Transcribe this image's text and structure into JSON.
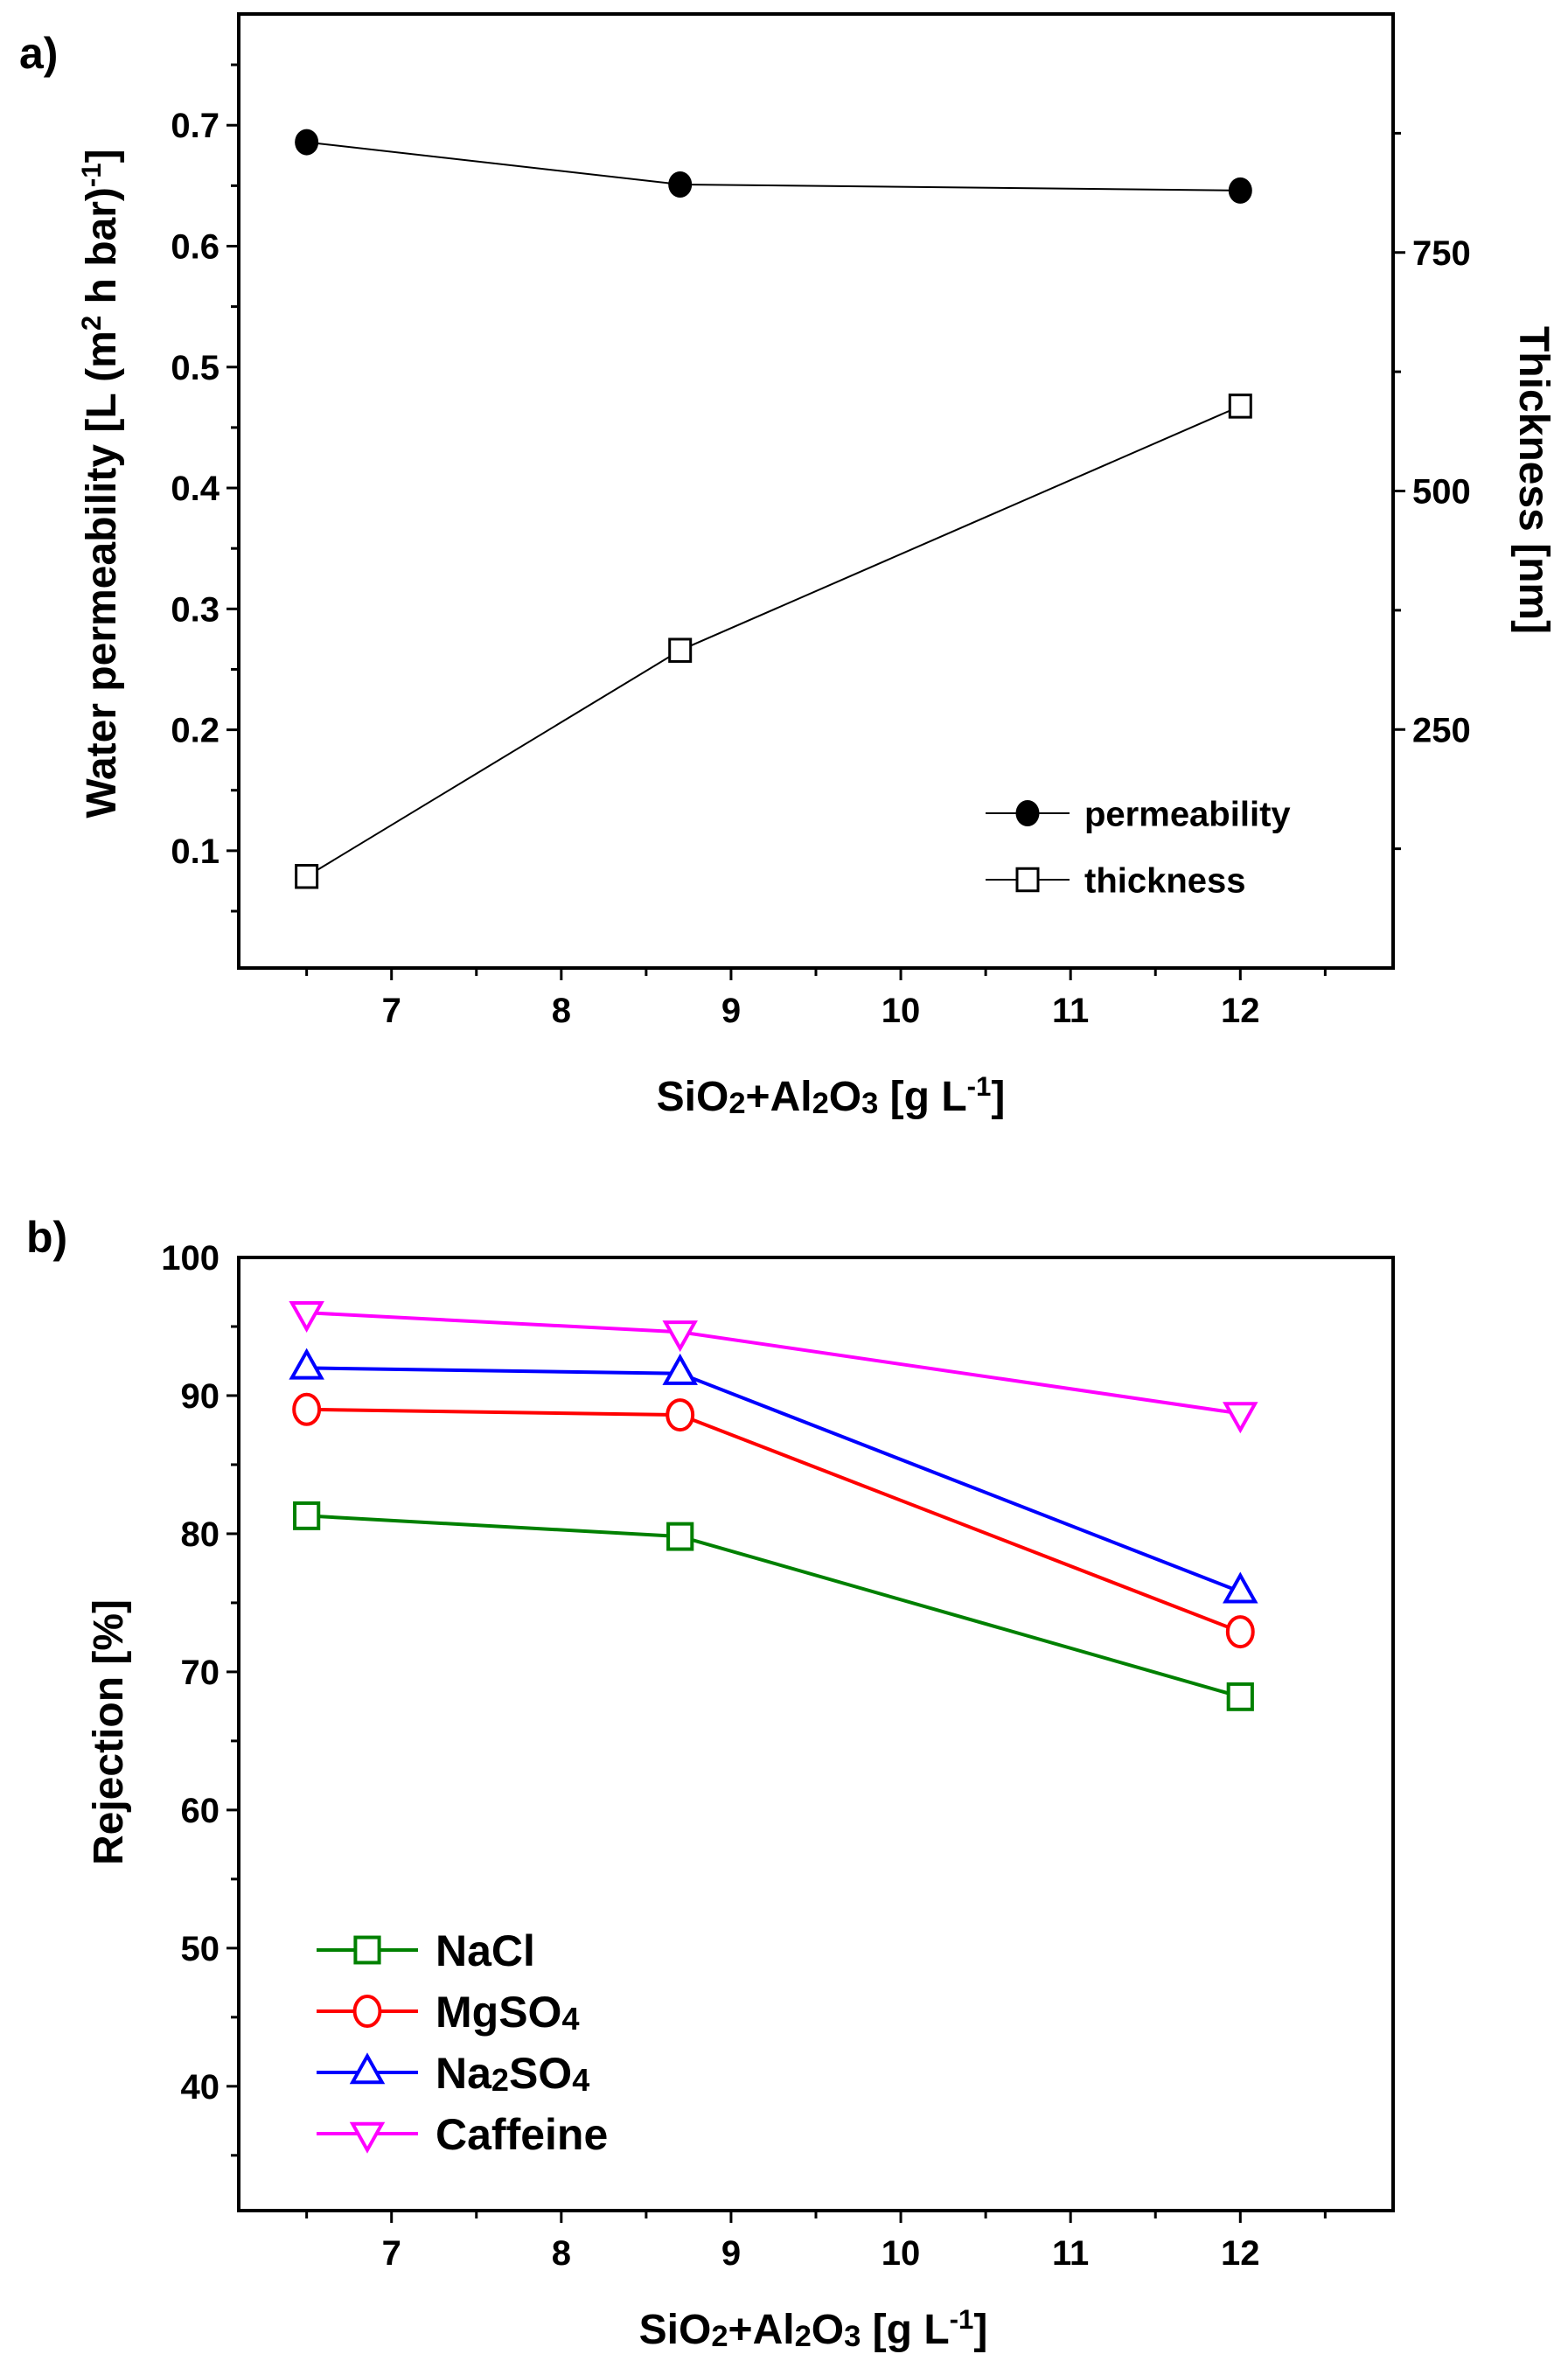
{
  "chart_data": [
    {
      "panel_label": "a)",
      "type": "line",
      "xlabel": "SiO2+Al2O3 [g L-1]",
      "ylabel": "Water permeability [L (m2 h bar)-1]",
      "ylabel_right": "Thickness [nm]",
      "xlim": [
        6.1,
        12.9
      ],
      "ylim": [
        0.003,
        0.792
      ],
      "ylim_right": [
        0,
        1000
      ],
      "x_ticks": [
        "7",
        "8",
        "9",
        "10",
        "11",
        "12"
      ],
      "y_ticks": [
        "0.1",
        "0.2",
        "0.3",
        "0.4",
        "0.5",
        "0.6",
        "0.7"
      ],
      "y_ticks_right": [
        "250",
        "500",
        "750"
      ],
      "grid": false,
      "legend_position": "bottom-right",
      "x": [
        6.5,
        8.7,
        12
      ],
      "series": [
        {
          "name": "permeability",
          "axis": "left",
          "marker": "filled-circle",
          "color": "#000000",
          "values": [
            0.686,
            0.651,
            0.646
          ]
        },
        {
          "name": "thickness",
          "axis": "right",
          "marker": "open-square",
          "color": "#000000",
          "values": [
            96,
            333,
            589
          ]
        }
      ]
    },
    {
      "panel_label": "b)",
      "type": "line",
      "xlabel": "SiO2+Al2O3 [g L-1]",
      "ylabel": "Rejection [%]",
      "xlim": [
        6.1,
        12.9
      ],
      "ylim": [
        31,
        100
      ],
      "x_ticks": [
        "7",
        "8",
        "9",
        "10",
        "11",
        "12"
      ],
      "y_ticks": [
        "40",
        "50",
        "60",
        "70",
        "80",
        "90",
        "100"
      ],
      "grid": false,
      "legend_position": "bottom-left",
      "x": [
        6.5,
        8.7,
        12
      ],
      "series": [
        {
          "name": "NaCl",
          "marker": "open-square",
          "color": "#008000",
          "values": [
            81.3,
            79.8,
            68.2
          ]
        },
        {
          "name": "MgSO4",
          "marker": "open-circle",
          "color": "#ff0000",
          "values": [
            89.0,
            88.6,
            72.9
          ]
        },
        {
          "name": "Na2SO4",
          "marker": "open-triangle-up",
          "color": "#0000ff",
          "values": [
            92.0,
            91.6,
            75.8
          ]
        },
        {
          "name": "Caffeine",
          "marker": "open-triangle-down",
          "color": "#ff00ff",
          "values": [
            96.0,
            94.6,
            88.7
          ]
        }
      ]
    }
  ]
}
